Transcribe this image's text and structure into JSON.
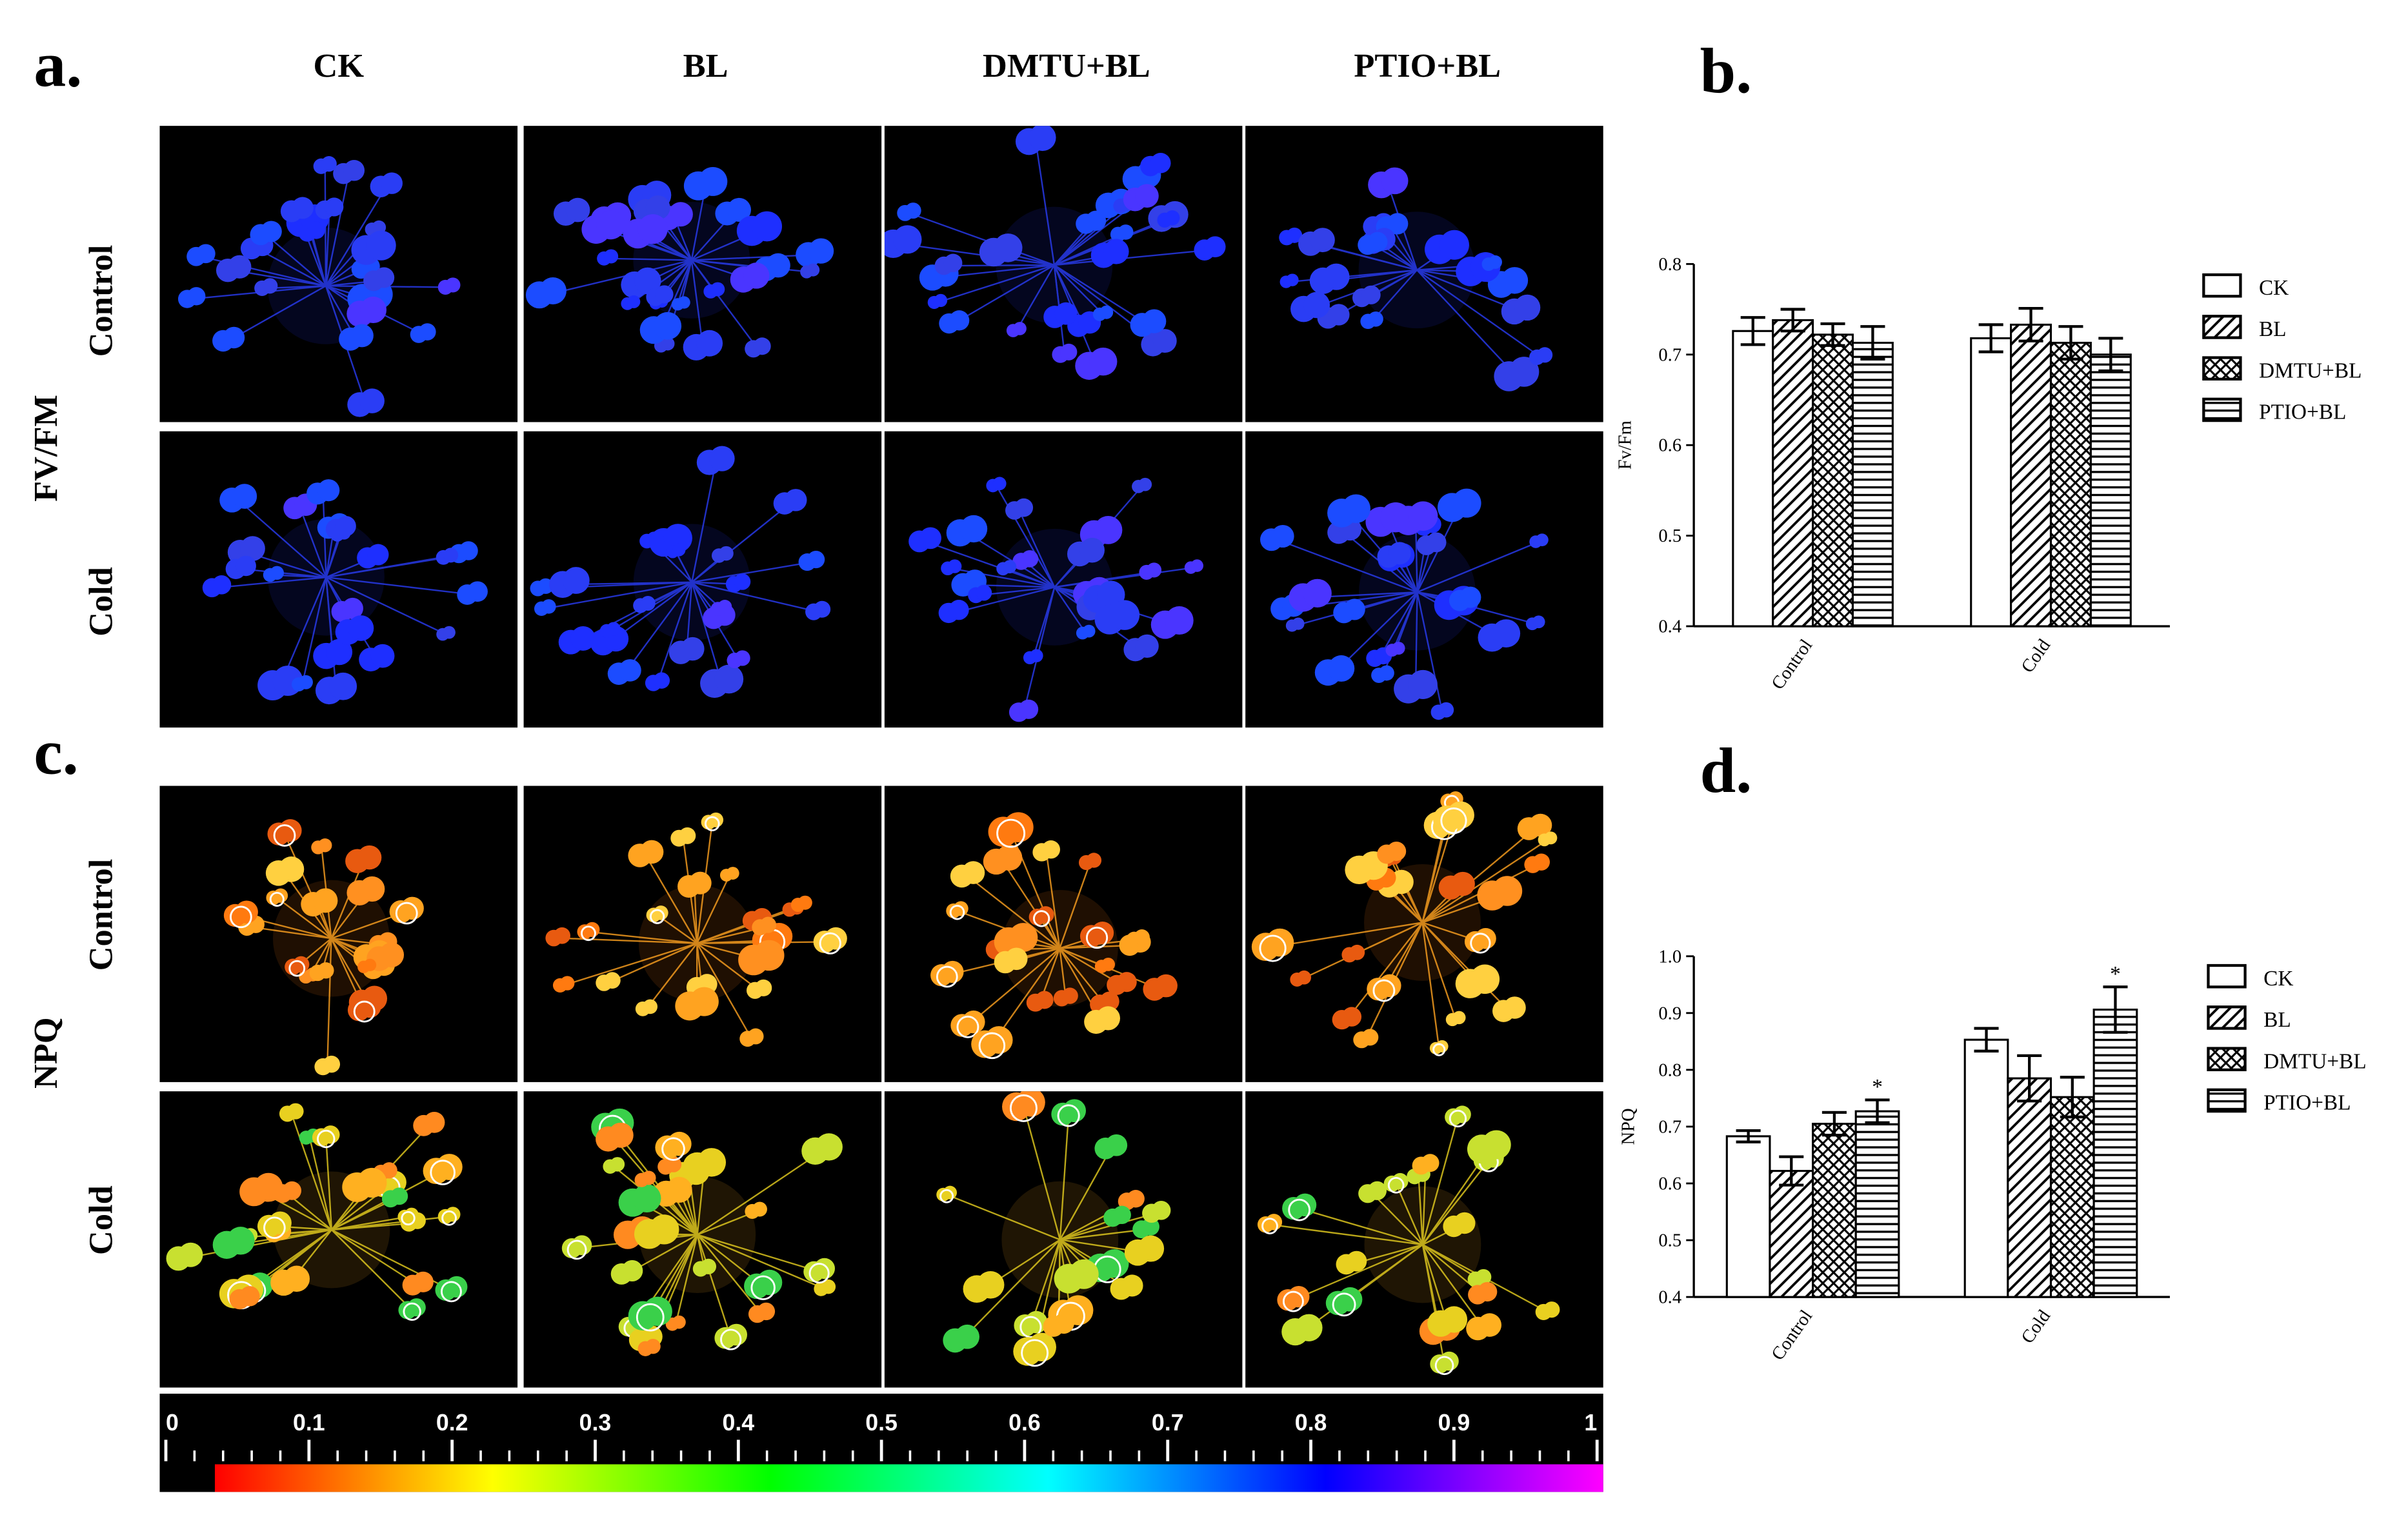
{
  "panel_a": {
    "label": "a.",
    "columns": [
      "CK",
      "BL",
      "DMTU+BL",
      "PTIO+BL"
    ],
    "rows": [
      "Control",
      "Cold"
    ],
    "group_label": "FV/FM",
    "palette": [
      "#1e2fff",
      "#2a3df5",
      "#3340e8",
      "#4a35ff",
      "#1c4cff"
    ]
  },
  "panel_c": {
    "label": "c.",
    "rows": [
      "Control",
      "Cold"
    ],
    "group_label": "NPQ",
    "palette_control": [
      "#ff7a10",
      "#ffa320",
      "#e85a10",
      "#ffd040",
      "#ff9020"
    ],
    "palette_cold": [
      "#ffb020",
      "#e8d020",
      "#3ad04a",
      "#ff8a20",
      "#c8e030"
    ]
  },
  "colorbar": {
    "tick_labels": [
      "0",
      "0.1",
      "0.2",
      "0.3",
      "0.4",
      "0.5",
      "0.6",
      "0.7",
      "0.8",
      "0.9",
      "1"
    ],
    "colors": [
      "#ff0000",
      "#ff8000",
      "#ffff00",
      "#80ff00",
      "#00ff00",
      "#00ff80",
      "#00ffff",
      "#0080ff",
      "#0000ff",
      "#8000ff",
      "#ff00ff"
    ]
  },
  "chart_data": [
    {
      "panel": "b.",
      "type": "bar",
      "categories": [
        "Control",
        "Cold"
      ],
      "series": [
        {
          "name": "CK",
          "values": [
            0.726,
            0.718
          ],
          "errors": [
            0.015,
            0.015
          ],
          "pattern": "none",
          "star": [
            false,
            false
          ]
        },
        {
          "name": "BL",
          "values": [
            0.738,
            0.733
          ],
          "errors": [
            0.012,
            0.018
          ],
          "pattern": "diag",
          "star": [
            false,
            false
          ]
        },
        {
          "name": "DMTU+BL",
          "values": [
            0.722,
            0.713
          ],
          "errors": [
            0.012,
            0.018
          ],
          "pattern": "cross",
          "star": [
            false,
            false
          ]
        },
        {
          "name": "PTIO+BL",
          "values": [
            0.713,
            0.7
          ],
          "errors": [
            0.018,
            0.018
          ],
          "pattern": "horiz",
          "star": [
            false,
            false
          ]
        }
      ],
      "ylabel": "Fv/Fm",
      "ylim": [
        0.4,
        0.8
      ],
      "yticks": [
        "0.4",
        "0.5",
        "0.6",
        "0.7",
        "0.8"
      ],
      "legend": "right"
    },
    {
      "panel": "d.",
      "type": "bar",
      "categories": [
        "Control",
        "Cold"
      ],
      "series": [
        {
          "name": "CK",
          "values": [
            0.683,
            0.853
          ],
          "errors": [
            0.01,
            0.02
          ],
          "pattern": "none",
          "star": [
            false,
            false
          ]
        },
        {
          "name": "BL",
          "values": [
            0.622,
            0.785
          ],
          "errors": [
            0.025,
            0.04
          ],
          "pattern": "diag",
          "star": [
            false,
            false
          ]
        },
        {
          "name": "DMTU+BL",
          "values": [
            0.705,
            0.752
          ],
          "errors": [
            0.02,
            0.035
          ],
          "pattern": "cross",
          "star": [
            false,
            false
          ]
        },
        {
          "name": "PTIO+BL",
          "values": [
            0.727,
            0.906
          ],
          "errors": [
            0.02,
            0.04
          ],
          "pattern": "horiz",
          "star": [
            true,
            true
          ]
        }
      ],
      "ylabel": "NPQ",
      "ylim": [
        0.4,
        1.0
      ],
      "yticks": [
        "0.4",
        "0.5",
        "0.6",
        "0.7",
        "0.8",
        "0.9",
        "1.0"
      ],
      "star_symbol": "*",
      "legend": "right"
    }
  ]
}
